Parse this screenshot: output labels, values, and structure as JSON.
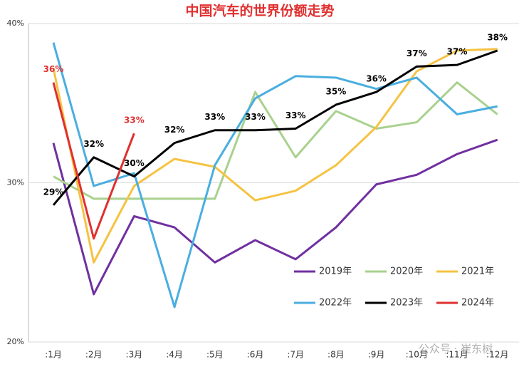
{
  "chart_data": {
    "type": "line",
    "title": "中国汽车的世界份额走势",
    "categories": [
      ":1月",
      ":2月",
      ":3月",
      ":4月",
      ":5月",
      ":6月",
      ":7月",
      ":8月",
      ":9月",
      ":10月",
      ":11月",
      ":12月"
    ],
    "series": [
      {
        "name": "2019年",
        "color": "#7030a0",
        "values": [
          32.5,
          23.0,
          27.9,
          27.2,
          25.0,
          26.4,
          25.2,
          27.2,
          29.9,
          30.5,
          31.8,
          32.7
        ]
      },
      {
        "name": "2020年",
        "color": "#a9d18e",
        "values": [
          30.4,
          29.0,
          29.0,
          29.0,
          29.0,
          35.7,
          31.6,
          34.5,
          33.4,
          33.8,
          36.3,
          34.3
        ]
      },
      {
        "name": "2021年",
        "color": "#f5c342",
        "values": [
          37.2,
          25.0,
          29.8,
          31.5,
          31.0,
          28.9,
          29.5,
          31.1,
          33.5,
          37.0,
          38.3,
          38.4
        ]
      },
      {
        "name": "2022年",
        "color": "#4aaee0",
        "values": [
          38.8,
          29.8,
          30.6,
          22.2,
          31.1,
          35.3,
          36.7,
          36.6,
          35.9,
          36.6,
          34.3,
          34.8
        ]
      },
      {
        "name": "2023年",
        "color": "#000000",
        "values": [
          28.6,
          31.6,
          30.4,
          32.5,
          33.3,
          33.3,
          33.4,
          34.9,
          35.7,
          37.3,
          37.4,
          38.3
        ],
        "value_labels": [
          "29%",
          "32%",
          "30%",
          "32%",
          "33%",
          "33%",
          "33%",
          "35%",
          "36%",
          "37%",
          "37%",
          "38%"
        ]
      },
      {
        "name": "2024年",
        "color": "#e03030",
        "values": [
          36.3,
          26.5,
          33.1,
          null,
          null,
          null,
          null,
          null,
          null,
          null,
          null,
          null
        ],
        "value_labels": [
          "36%",
          null,
          "33%",
          null,
          null,
          null,
          null,
          null,
          null,
          null,
          null,
          null
        ]
      }
    ],
    "ylim": [
      20,
      40
    ],
    "yticks": [
      {
        "value": 20,
        "label": "20%"
      },
      {
        "value": 30,
        "label": "30%"
      },
      {
        "value": 40,
        "label": "40%"
      }
    ],
    "grid": true,
    "watermark": "公众号 · 崔东树"
  }
}
